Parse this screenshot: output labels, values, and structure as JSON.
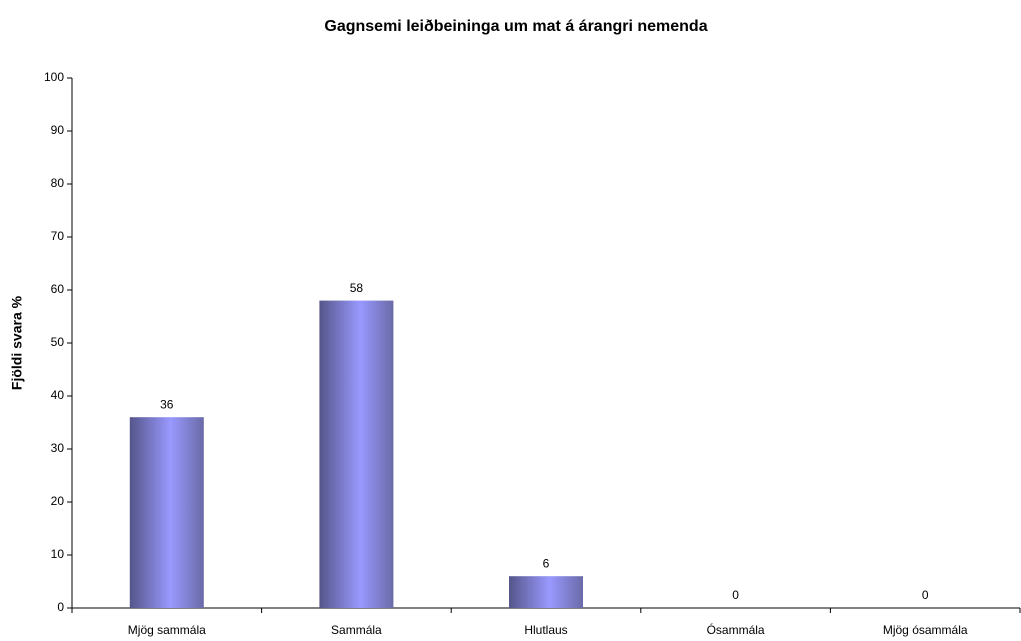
{
  "chart_data": {
    "type": "bar",
    "title": "Gagnsemi leiðbeininga um mat á árangri nemenda",
    "y_label": "Fjöldi svara %",
    "categories": [
      "Mjög sammála",
      "Sammála",
      "Hlutlaus",
      "Ósammála",
      "Mjög ósammála"
    ],
    "values": [
      36,
      58,
      6,
      0,
      0
    ],
    "color": "#9999ff",
    "ylim": [
      0,
      100
    ],
    "yticks": [
      0,
      10,
      20,
      30,
      40,
      50,
      60,
      70,
      80,
      90,
      100
    ],
    "grid": false
  }
}
